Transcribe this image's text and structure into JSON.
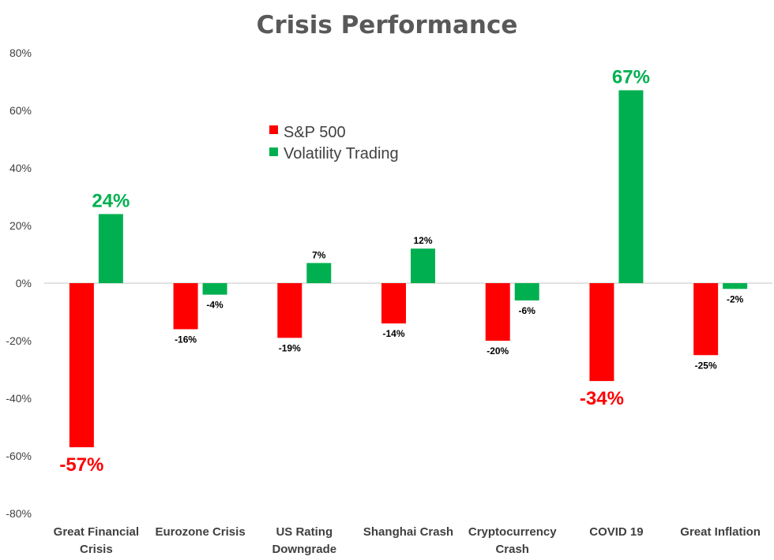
{
  "chart_data": {
    "type": "bar",
    "title": "Crisis Performance",
    "categories": [
      [
        "Great Financial",
        "Crisis"
      ],
      [
        "Eurozone Crisis"
      ],
      [
        "US Rating",
        "Downgrade"
      ],
      [
        "Shanghai Crash"
      ],
      [
        "Cryptocurrency",
        "Crash"
      ],
      [
        "COVID 19"
      ],
      [
        "Great Inflation"
      ]
    ],
    "series": [
      {
        "name": "S&P 500",
        "color": "#ff0000",
        "values": [
          -57,
          -16,
          -19,
          -14,
          -20,
          -34,
          -25
        ],
        "labels": [
          "-57%",
          "-16%",
          "-19%",
          "-14%",
          "-20%",
          "-34%",
          "-25%"
        ],
        "highlight": [
          true,
          false,
          false,
          false,
          false,
          true,
          false
        ]
      },
      {
        "name": "Volatility Trading",
        "color": "#00b050",
        "values": [
          24,
          -4,
          7,
          12,
          -6,
          67,
          -2
        ],
        "labels": [
          "24%",
          "-4%",
          "7%",
          "12%",
          "-6%",
          "67%",
          "-2%"
        ],
        "highlight": [
          true,
          false,
          false,
          false,
          false,
          true,
          false
        ]
      }
    ],
    "ylim": [
      -80,
      80
    ],
    "yticks": [
      80,
      60,
      40,
      20,
      0,
      -20,
      -40,
      -60,
      -80
    ],
    "ytick_labels": [
      "80%",
      "60%",
      "40%",
      "20%",
      "0%",
      "-20%",
      "-40%",
      "-60%",
      "-80%"
    ],
    "xlabel": "",
    "ylabel": "",
    "legend": "upper-center",
    "grid": false
  }
}
